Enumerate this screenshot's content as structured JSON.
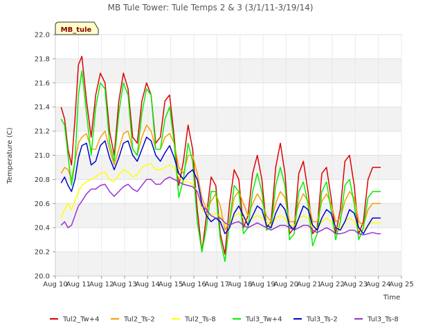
{
  "chart_data": {
    "type": "line",
    "title": "MB Tule Tower: Tule Temps 2 & 3 (3/1/11-3/19/14)",
    "xlabel": "Time",
    "ylabel": "Temperature (C)",
    "site_tag": "MB_tule",
    "xlim": [
      10,
      25
    ],
    "ylim": [
      20.0,
      22.0
    ],
    "x_ticks": [
      10,
      11,
      12,
      13,
      14,
      15,
      16,
      17,
      18,
      19,
      20,
      21,
      22,
      23,
      24,
      25
    ],
    "x_tick_labels": [
      "Aug 10",
      "Aug 11",
      "Aug 12",
      "Aug 13",
      "Aug 14",
      "Aug 15",
      "Aug 16",
      "Aug 17",
      "Aug 18",
      "Aug 19",
      "Aug 20",
      "Aug 21",
      "Aug 22",
      "Aug 23",
      "Aug 24",
      "Aug 25"
    ],
    "y_ticks": [
      20.0,
      20.2,
      20.4,
      20.6,
      20.8,
      21.0,
      21.2,
      21.4,
      21.6,
      21.8,
      22.0
    ],
    "y_tick_labels": [
      "20.0",
      "20.2",
      "20.4",
      "20.6",
      "20.8",
      "21.0",
      "21.2",
      "21.4",
      "21.6",
      "21.8",
      "22.0"
    ],
    "grid": true,
    "legend_position": "bottom",
    "series": [
      {
        "name": "Tul2_Tw+4",
        "color": "#dd0000",
        "x": [
          10.25,
          10.4,
          10.55,
          10.7,
          10.85,
          11.0,
          11.15,
          11.35,
          11.55,
          11.75,
          11.95,
          12.15,
          12.35,
          12.55,
          12.75,
          12.95,
          13.15,
          13.35,
          13.55,
          13.75,
          13.95,
          14.15,
          14.35,
          14.55,
          14.75,
          14.95,
          15.15,
          15.35,
          15.55,
          15.75,
          15.95,
          16.15,
          16.35,
          16.55,
          16.75,
          16.95,
          17.15,
          17.35,
          17.55,
          17.75,
          17.95,
          18.15,
          18.35,
          18.55,
          18.75,
          18.95,
          19.15,
          19.35,
          19.55,
          19.75,
          19.95,
          20.15,
          20.35,
          20.55,
          20.75,
          20.95,
          21.15,
          21.35,
          21.55,
          21.75,
          21.95,
          22.15,
          22.35,
          22.55,
          22.75,
          22.95,
          23.15,
          23.35,
          23.55,
          23.75,
          23.95,
          24.1
        ],
        "y": [
          21.4,
          21.3,
          21.05,
          20.92,
          21.3,
          21.75,
          21.82,
          21.45,
          21.15,
          21.5,
          21.68,
          21.6,
          21.2,
          21.0,
          21.45,
          21.68,
          21.55,
          21.15,
          21.1,
          21.45,
          21.6,
          21.5,
          21.1,
          21.15,
          21.45,
          21.5,
          21.15,
          20.75,
          20.95,
          21.25,
          21.05,
          20.55,
          20.2,
          20.5,
          20.82,
          20.75,
          20.35,
          20.18,
          20.6,
          20.88,
          20.8,
          20.4,
          20.5,
          20.85,
          21.0,
          20.8,
          20.4,
          20.45,
          20.9,
          21.1,
          20.85,
          20.35,
          20.4,
          20.85,
          20.95,
          20.7,
          20.35,
          20.4,
          20.85,
          20.9,
          20.65,
          20.35,
          20.55,
          20.95,
          21.0,
          20.75,
          20.35,
          20.45,
          20.8,
          20.9,
          20.9,
          20.9
        ]
      },
      {
        "name": "Tul2_Ts-2",
        "color": "#ff9900",
        "x": [
          10.25,
          10.4,
          10.55,
          10.7,
          10.85,
          11.0,
          11.15,
          11.35,
          11.55,
          11.75,
          11.95,
          12.15,
          12.35,
          12.55,
          12.75,
          12.95,
          13.15,
          13.35,
          13.55,
          13.75,
          13.95,
          14.15,
          14.35,
          14.55,
          14.75,
          14.95,
          15.15,
          15.35,
          15.55,
          15.75,
          15.95,
          16.15,
          16.35,
          16.55,
          16.75,
          16.95,
          17.15,
          17.35,
          17.55,
          17.75,
          17.95,
          18.15,
          18.35,
          18.55,
          18.75,
          18.95,
          19.15,
          19.35,
          19.55,
          19.75,
          19.95,
          20.15,
          20.35,
          20.55,
          20.75,
          20.95,
          21.15,
          21.35,
          21.55,
          21.75,
          21.95,
          22.15,
          22.35,
          22.55,
          22.75,
          22.95,
          23.15,
          23.35,
          23.55,
          23.75,
          23.95,
          24.1
        ],
        "y": [
          20.85,
          20.9,
          20.88,
          20.8,
          20.95,
          21.1,
          21.15,
          21.18,
          21.05,
          21.05,
          21.15,
          21.2,
          21.05,
          20.92,
          21.05,
          21.18,
          21.2,
          21.05,
          21.0,
          21.15,
          21.25,
          21.2,
          21.05,
          21.05,
          21.15,
          21.18,
          21.1,
          20.9,
          20.85,
          21.0,
          21.0,
          20.85,
          20.65,
          20.55,
          20.62,
          20.68,
          20.58,
          20.38,
          20.45,
          20.65,
          20.7,
          20.6,
          20.5,
          20.6,
          20.68,
          20.62,
          20.5,
          20.45,
          20.6,
          20.7,
          20.65,
          20.45,
          20.45,
          20.6,
          20.68,
          20.62,
          20.45,
          20.45,
          20.62,
          20.68,
          20.6,
          20.45,
          20.48,
          20.62,
          20.7,
          20.65,
          20.45,
          20.42,
          20.55,
          20.6,
          20.6,
          20.6
        ]
      },
      {
        "name": "Tul2_Ts-8",
        "color": "#ffff00",
        "x": [
          10.25,
          10.4,
          10.55,
          10.7,
          10.85,
          11.0,
          11.15,
          11.35,
          11.55,
          11.75,
          11.95,
          12.15,
          12.35,
          12.55,
          12.75,
          12.95,
          13.15,
          13.35,
          13.55,
          13.75,
          13.95,
          14.15,
          14.35,
          14.55,
          14.75,
          14.95,
          15.15,
          15.35,
          15.55,
          15.75,
          15.95,
          16.15,
          16.35,
          16.55,
          16.75,
          16.95,
          17.15,
          17.35,
          17.55,
          17.75,
          17.95,
          18.15,
          18.35,
          18.55,
          18.75,
          18.95,
          19.15,
          19.35,
          19.55,
          19.75,
          19.95,
          20.15,
          20.35,
          20.55,
          20.75,
          20.95,
          21.15,
          21.35,
          21.55,
          21.75,
          21.95,
          22.15,
          22.35,
          22.55,
          22.75,
          22.95,
          23.15,
          23.35,
          23.55,
          23.75,
          23.95,
          24.1
        ],
        "y": [
          20.48,
          20.55,
          20.6,
          20.55,
          20.62,
          20.7,
          20.75,
          20.78,
          20.8,
          20.82,
          20.85,
          20.86,
          20.8,
          20.78,
          20.84,
          20.88,
          20.86,
          20.82,
          20.84,
          20.9,
          20.92,
          20.93,
          20.88,
          20.88,
          20.9,
          20.92,
          20.9,
          20.82,
          20.78,
          20.78,
          20.76,
          20.7,
          20.55,
          20.52,
          20.5,
          20.52,
          20.5,
          20.42,
          20.44,
          20.5,
          20.52,
          20.48,
          20.45,
          20.48,
          20.5,
          20.48,
          20.45,
          20.42,
          20.48,
          20.5,
          20.48,
          20.42,
          20.42,
          20.48,
          20.5,
          20.48,
          20.4,
          20.4,
          20.45,
          20.48,
          20.45,
          20.4,
          20.4,
          20.45,
          20.48,
          20.45,
          20.38,
          20.38,
          20.42,
          20.44,
          20.44,
          20.44
        ]
      },
      {
        "name": "Tul3_Tw+4",
        "color": "#00ee00",
        "x": [
          10.25,
          10.4,
          10.55,
          10.7,
          10.85,
          11.0,
          11.15,
          11.35,
          11.55,
          11.75,
          11.95,
          12.15,
          12.35,
          12.55,
          12.75,
          12.95,
          13.15,
          13.35,
          13.55,
          13.75,
          13.95,
          14.15,
          14.35,
          14.55,
          14.75,
          14.95,
          15.15,
          15.35,
          15.55,
          15.75,
          15.95,
          16.15,
          16.35,
          16.55,
          16.75,
          16.95,
          17.15,
          17.35,
          17.55,
          17.75,
          17.95,
          18.15,
          18.35,
          18.55,
          18.75,
          18.95,
          19.15,
          19.35,
          19.55,
          19.75,
          19.95,
          20.15,
          20.35,
          20.55,
          20.75,
          20.95,
          21.15,
          21.35,
          21.55,
          21.75,
          21.95,
          22.15,
          22.35,
          22.55,
          22.75,
          22.95,
          23.15,
          23.35,
          23.55,
          23.75,
          23.95,
          24.1
        ],
        "y": [
          21.3,
          21.25,
          21.0,
          20.75,
          20.95,
          21.5,
          21.7,
          21.35,
          21.0,
          21.4,
          21.6,
          21.55,
          21.1,
          20.95,
          21.35,
          21.6,
          21.5,
          21.05,
          21.0,
          21.35,
          21.55,
          21.5,
          21.05,
          21.05,
          21.3,
          21.4,
          21.1,
          20.65,
          20.8,
          21.1,
          20.95,
          20.45,
          20.2,
          20.4,
          20.7,
          20.7,
          20.3,
          20.12,
          20.45,
          20.75,
          20.7,
          20.35,
          20.4,
          20.7,
          20.85,
          20.7,
          20.38,
          20.4,
          20.75,
          20.9,
          20.75,
          20.3,
          20.35,
          20.7,
          20.78,
          20.6,
          20.25,
          20.35,
          20.7,
          20.78,
          20.55,
          20.3,
          20.45,
          20.75,
          20.8,
          20.6,
          20.3,
          20.4,
          20.65,
          20.7,
          20.7,
          20.7
        ]
      },
      {
        "name": "Tul3_Ts-2",
        "color": "#0000cc",
        "x": [
          10.25,
          10.4,
          10.55,
          10.7,
          10.85,
          11.0,
          11.15,
          11.35,
          11.55,
          11.75,
          11.95,
          12.15,
          12.35,
          12.55,
          12.75,
          12.95,
          13.15,
          13.35,
          13.55,
          13.75,
          13.95,
          14.15,
          14.35,
          14.55,
          14.75,
          14.95,
          15.15,
          15.35,
          15.55,
          15.75,
          15.95,
          16.15,
          16.35,
          16.55,
          16.75,
          16.95,
          17.15,
          17.35,
          17.55,
          17.75,
          17.95,
          18.15,
          18.35,
          18.55,
          18.75,
          18.95,
          19.15,
          19.35,
          19.55,
          19.75,
          19.95,
          20.15,
          20.35,
          20.55,
          20.75,
          20.95,
          21.15,
          21.35,
          21.55,
          21.75,
          21.95,
          22.15,
          22.35,
          22.55,
          22.75,
          22.95,
          23.15,
          23.35,
          23.55,
          23.75,
          23.95,
          24.1
        ],
        "y": [
          20.77,
          20.82,
          20.75,
          20.7,
          20.8,
          20.98,
          21.08,
          21.1,
          20.92,
          20.95,
          21.08,
          21.12,
          20.98,
          20.88,
          20.98,
          21.1,
          21.12,
          21.0,
          20.95,
          21.05,
          21.15,
          21.12,
          21.0,
          20.95,
          21.02,
          21.08,
          20.98,
          20.85,
          20.8,
          20.85,
          20.88,
          20.8,
          20.6,
          20.5,
          20.45,
          20.48,
          20.45,
          20.35,
          20.4,
          20.52,
          20.58,
          20.5,
          20.42,
          20.5,
          20.58,
          20.55,
          20.42,
          20.4,
          20.52,
          20.6,
          20.55,
          20.42,
          20.38,
          20.48,
          20.58,
          20.55,
          20.42,
          20.38,
          20.48,
          20.55,
          20.52,
          20.4,
          20.38,
          20.45,
          20.55,
          20.52,
          20.4,
          20.35,
          20.42,
          20.48,
          20.48,
          20.48
        ]
      },
      {
        "name": "Tul3_Ts-8",
        "color": "#9933cc",
        "x": [
          10.25,
          10.4,
          10.55,
          10.7,
          10.85,
          11.0,
          11.15,
          11.35,
          11.55,
          11.75,
          11.95,
          12.15,
          12.35,
          12.55,
          12.75,
          12.95,
          13.15,
          13.35,
          13.55,
          13.75,
          13.95,
          14.15,
          14.35,
          14.55,
          14.75,
          14.95,
          15.15,
          15.35,
          15.55,
          15.75,
          15.95,
          16.15,
          16.35,
          16.55,
          16.75,
          16.95,
          17.15,
          17.35,
          17.55,
          17.75,
          17.95,
          18.15,
          18.35,
          18.55,
          18.75,
          18.95,
          19.15,
          19.35,
          19.55,
          19.75,
          19.95,
          20.15,
          20.35,
          20.55,
          20.75,
          20.95,
          21.15,
          21.35,
          21.55,
          21.75,
          21.95,
          22.15,
          22.35,
          22.55,
          22.75,
          22.95,
          23.15,
          23.35,
          23.55,
          23.75,
          23.95,
          24.1
        ],
        "y": [
          20.42,
          20.45,
          20.4,
          20.42,
          20.5,
          20.58,
          20.62,
          20.68,
          20.72,
          20.72,
          20.75,
          20.76,
          20.7,
          20.66,
          20.7,
          20.74,
          20.76,
          20.72,
          20.7,
          20.75,
          20.8,
          20.8,
          20.76,
          20.76,
          20.8,
          20.82,
          20.8,
          20.78,
          20.76,
          20.75,
          20.74,
          20.7,
          20.58,
          20.55,
          20.5,
          20.48,
          20.48,
          20.44,
          20.42,
          20.44,
          20.45,
          20.42,
          20.4,
          20.42,
          20.44,
          20.42,
          20.4,
          20.38,
          20.4,
          20.42,
          20.42,
          20.4,
          20.38,
          20.4,
          20.42,
          20.42,
          20.38,
          20.36,
          20.38,
          20.4,
          20.38,
          20.35,
          20.35,
          20.36,
          20.38,
          20.38,
          20.35,
          20.34,
          20.35,
          20.36,
          20.35,
          20.35
        ]
      }
    ]
  }
}
